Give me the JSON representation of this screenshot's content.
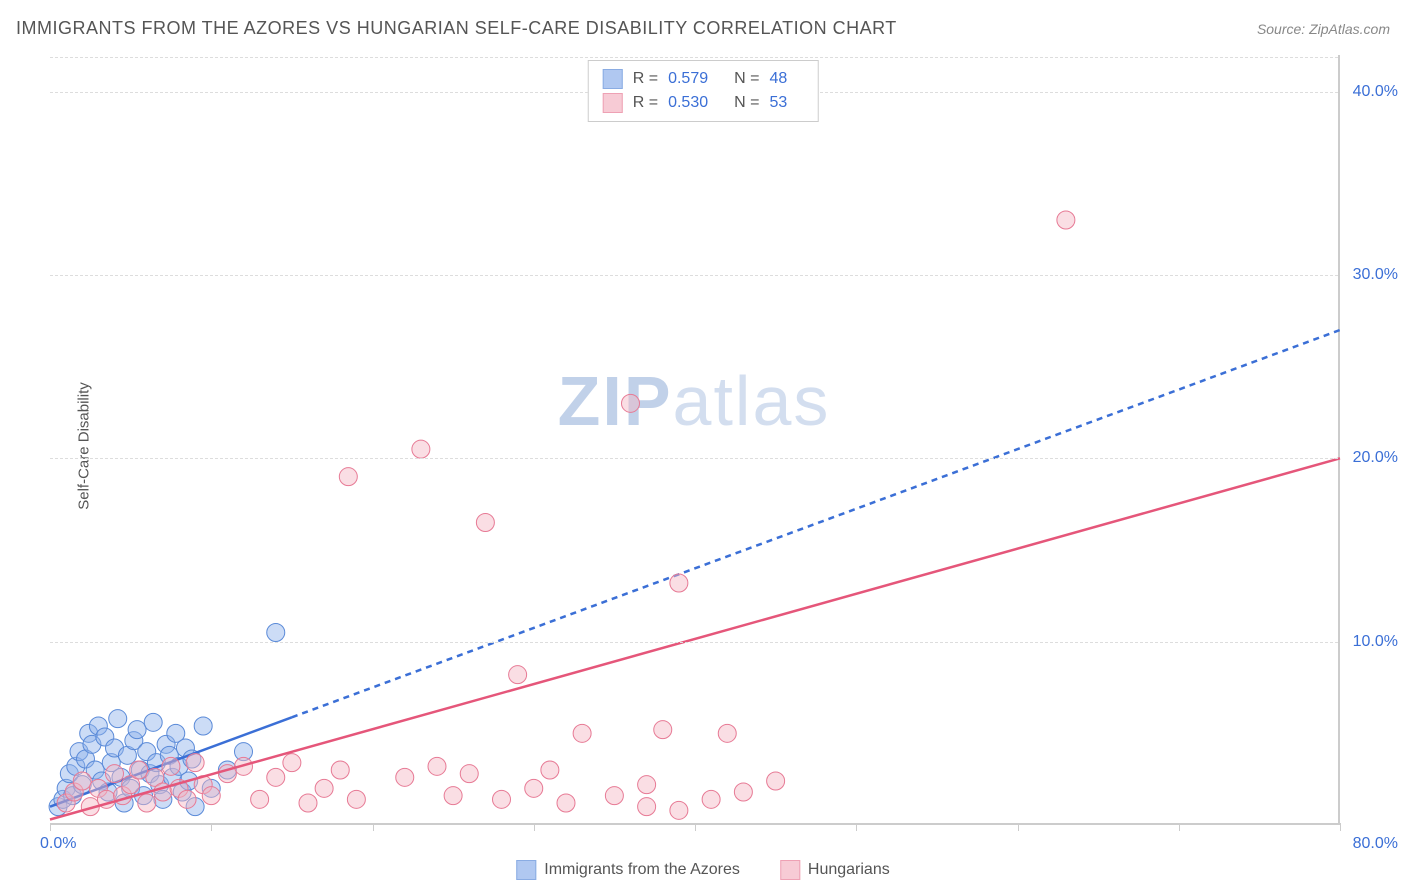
{
  "title": "IMMIGRANTS FROM THE AZORES VS HUNGARIAN SELF-CARE DISABILITY CORRELATION CHART",
  "source": "Source: ZipAtlas.com",
  "yaxis_title": "Self-Care Disability",
  "watermark_a": "ZIP",
  "watermark_b": "atlas",
  "chart": {
    "type": "scatter",
    "xlim": [
      0,
      80
    ],
    "ylim": [
      0,
      42
    ],
    "xtick_interval": 10,
    "ytick_values": [
      10,
      20,
      30,
      40
    ],
    "ytick_labels": [
      "10.0%",
      "20.0%",
      "30.0%",
      "40.0%"
    ],
    "xlabel_min": "0.0%",
    "xlabel_max": "80.0%",
    "grid_color": "#dddddd",
    "axis_color": "#cccccc",
    "background_color": "#ffffff",
    "marker_radius": 9,
    "marker_opacity": 0.45,
    "trend_line_width": 2.5
  },
  "series": [
    {
      "key": "azores",
      "label": "Immigrants from the Azores",
      "R": "0.579",
      "N": "48",
      "fill": "#8fb1ec",
      "stroke": "#5a8ad8",
      "line_color": "#3b6fd6",
      "line_dash": "6 5",
      "line": {
        "x1": 0,
        "y1": 1.0,
        "x2": 80,
        "y2": 27.0
      },
      "solid_until_x": 15,
      "points": [
        [
          0.5,
          1.0
        ],
        [
          0.8,
          1.4
        ],
        [
          1.0,
          2.0
        ],
        [
          1.2,
          2.8
        ],
        [
          1.4,
          1.6
        ],
        [
          1.6,
          3.2
        ],
        [
          1.8,
          4.0
        ],
        [
          2.0,
          2.2
        ],
        [
          2.2,
          3.6
        ],
        [
          2.4,
          5.0
        ],
        [
          2.6,
          4.4
        ],
        [
          2.8,
          3.0
        ],
        [
          3.0,
          5.4
        ],
        [
          3.2,
          2.4
        ],
        [
          3.4,
          4.8
        ],
        [
          3.6,
          1.8
        ],
        [
          3.8,
          3.4
        ],
        [
          4.0,
          4.2
        ],
        [
          4.2,
          5.8
        ],
        [
          4.4,
          2.6
        ],
        [
          4.6,
          1.2
        ],
        [
          4.8,
          3.8
        ],
        [
          5.0,
          2.0
        ],
        [
          5.2,
          4.6
        ],
        [
          5.4,
          5.2
        ],
        [
          5.6,
          3.0
        ],
        [
          5.8,
          1.6
        ],
        [
          6.0,
          4.0
        ],
        [
          6.2,
          2.8
        ],
        [
          6.4,
          5.6
        ],
        [
          6.6,
          3.4
        ],
        [
          6.8,
          2.2
        ],
        [
          7.0,
          1.4
        ],
        [
          7.2,
          4.4
        ],
        [
          7.4,
          3.8
        ],
        [
          7.6,
          2.6
        ],
        [
          7.8,
          5.0
        ],
        [
          8.0,
          3.2
        ],
        [
          8.2,
          1.8
        ],
        [
          8.4,
          4.2
        ],
        [
          8.6,
          2.4
        ],
        [
          8.8,
          3.6
        ],
        [
          9.0,
          1.0
        ],
        [
          9.5,
          5.4
        ],
        [
          10.0,
          2.0
        ],
        [
          11.0,
          3.0
        ],
        [
          12.0,
          4.0
        ],
        [
          14.0,
          10.5
        ]
      ]
    },
    {
      "key": "hungarians",
      "label": "Hungarians",
      "R": "0.530",
      "N": "53",
      "fill": "#f4b6c4",
      "stroke": "#e77a95",
      "line_color": "#e5567a",
      "line_dash": "",
      "line": {
        "x1": 0,
        "y1": 0.3,
        "x2": 80,
        "y2": 20.0
      },
      "points": [
        [
          1.0,
          1.2
        ],
        [
          1.5,
          1.8
        ],
        [
          2.0,
          2.4
        ],
        [
          2.5,
          1.0
        ],
        [
          3.0,
          2.0
        ],
        [
          3.5,
          1.4
        ],
        [
          4.0,
          2.8
        ],
        [
          4.5,
          1.6
        ],
        [
          5.0,
          2.2
        ],
        [
          5.5,
          3.0
        ],
        [
          6.0,
          1.2
        ],
        [
          6.5,
          2.6
        ],
        [
          7.0,
          1.8
        ],
        [
          7.5,
          3.2
        ],
        [
          8.0,
          2.0
        ],
        [
          8.5,
          1.4
        ],
        [
          9.0,
          3.4
        ],
        [
          9.5,
          2.2
        ],
        [
          10.0,
          1.6
        ],
        [
          11.0,
          2.8
        ],
        [
          12.0,
          3.2
        ],
        [
          13.0,
          1.4
        ],
        [
          14.0,
          2.6
        ],
        [
          15.0,
          3.4
        ],
        [
          16.0,
          1.2
        ],
        [
          17.0,
          2.0
        ],
        [
          18.0,
          3.0
        ],
        [
          19.0,
          1.4
        ],
        [
          18.5,
          19.0
        ],
        [
          22.0,
          2.6
        ],
        [
          23.0,
          20.5
        ],
        [
          24.0,
          3.2
        ],
        [
          25.0,
          1.6
        ],
        [
          26.0,
          2.8
        ],
        [
          27.0,
          16.5
        ],
        [
          28.0,
          1.4
        ],
        [
          29.0,
          8.2
        ],
        [
          30.0,
          2.0
        ],
        [
          31.0,
          3.0
        ],
        [
          32.0,
          1.2
        ],
        [
          33.0,
          5.0
        ],
        [
          35.0,
          1.6
        ],
        [
          36.0,
          23.0
        ],
        [
          37.0,
          2.2
        ],
        [
          38.0,
          5.2
        ],
        [
          39.0,
          13.2
        ],
        [
          41.0,
          1.4
        ],
        [
          42.0,
          5.0
        ],
        [
          43.0,
          1.8
        ],
        [
          45.0,
          2.4
        ],
        [
          63.0,
          33.0
        ],
        [
          37.0,
          1.0
        ],
        [
          39.0,
          0.8
        ]
      ]
    }
  ],
  "legend_top_prefix_R": "R = ",
  "legend_top_prefix_N": "N = "
}
